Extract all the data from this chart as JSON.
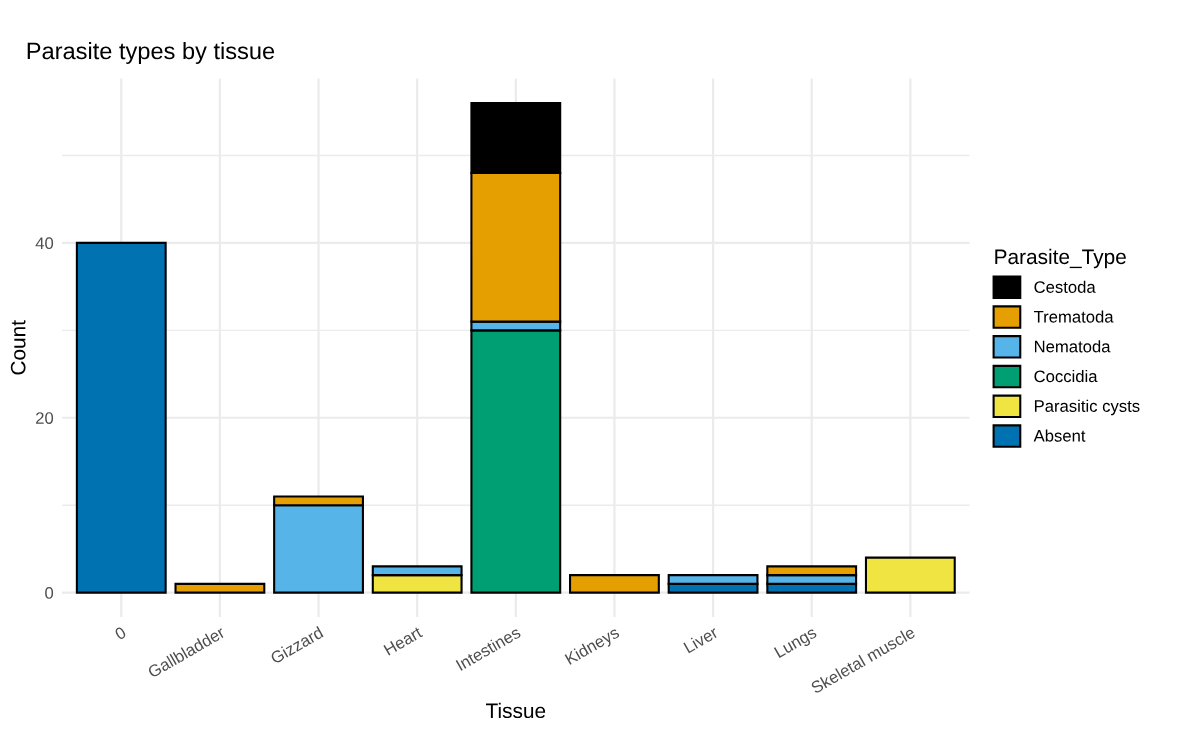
{
  "chart_data": {
    "type": "bar",
    "title": "Parasite types by tissue",
    "xlabel": "Tissue",
    "ylabel": "Count",
    "legend_title": "Parasite_Type",
    "categories": [
      "0",
      "Gallbladder",
      "Gizzard",
      "Heart",
      "Intestines",
      "Kidneys",
      "Liver",
      "Lungs",
      "Skeletal muscle"
    ],
    "stacked": true,
    "ylim": [
      -2.8,
      58.8
    ],
    "yticks": [
      0,
      {
        "value": 10,
        "label": null
      },
      20,
      {
        "value": 30,
        "label": null
      },
      40,
      {
        "value": 50,
        "label": null
      }
    ],
    "grid": true,
    "legend": "right",
    "series": [
      {
        "name": "Absent",
        "color": "#0072b2",
        "values": [
          40,
          0,
          0,
          0,
          0,
          0,
          1,
          1,
          0
        ]
      },
      {
        "name": "Parasitic cysts",
        "color": "#f0e442",
        "values": [
          0,
          0,
          0,
          2,
          0,
          0,
          0,
          0,
          4
        ]
      },
      {
        "name": "Coccidia",
        "color": "#009e73",
        "values": [
          0,
          0,
          0,
          0,
          30,
          0,
          0,
          0,
          0
        ]
      },
      {
        "name": "Nematoda",
        "color": "#56b4e9",
        "values": [
          0,
          0,
          10,
          1,
          1,
          0,
          1,
          1,
          0
        ]
      },
      {
        "name": "Trematoda",
        "color": "#e69f00",
        "values": [
          0,
          1,
          1,
          0,
          17,
          2,
          0,
          1,
          0
        ]
      },
      {
        "name": "Cestoda",
        "color": "#000000",
        "values": [
          0,
          0,
          0,
          0,
          8,
          0,
          0,
          0,
          0
        ]
      }
    ]
  }
}
